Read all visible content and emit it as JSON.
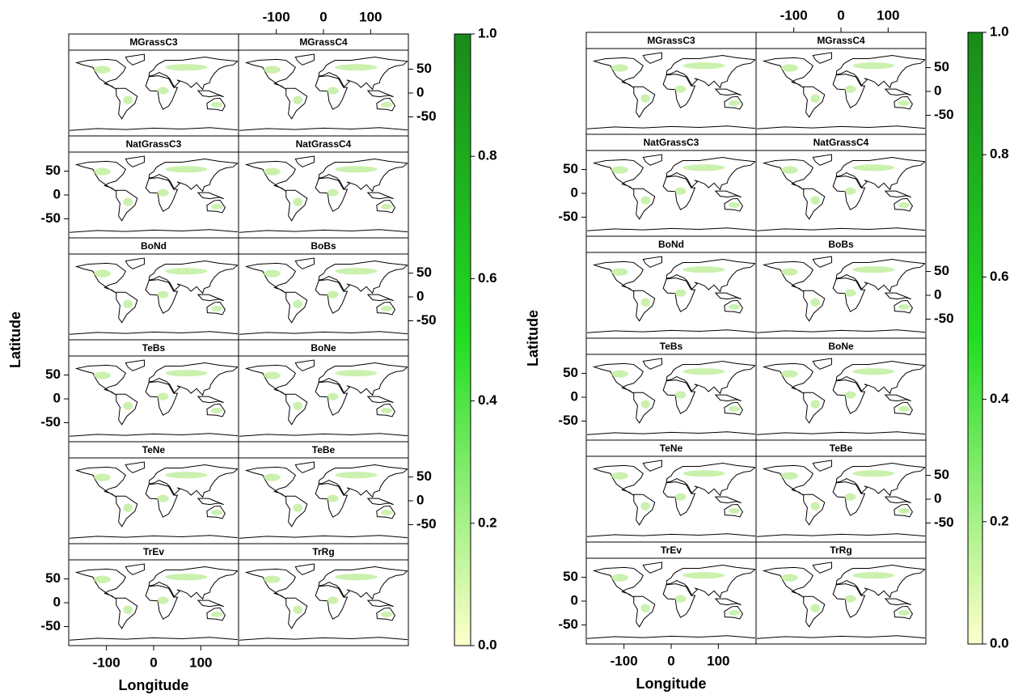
{
  "figures": [
    {
      "panels": [
        "MGrassC3",
        "MGrassC4",
        "NatGrassC3",
        "NatGrassC4",
        "BoNd",
        "BoBs",
        "TeBs",
        "BoNe",
        "TeNe",
        "TeBe",
        "TrEv",
        "TrRg"
      ],
      "xlabel": "Longitude",
      "ylabel": "Latitude",
      "xlim": [
        -180,
        180
      ],
      "ylim": [
        -90,
        90
      ],
      "xticks": [
        -100,
        0,
        100
      ],
      "yticks": [
        50,
        0,
        -50
      ],
      "colorbar": {
        "lim": [
          0,
          1
        ],
        "colors": [
          "#ffffcc",
          "#22dd22",
          "#1a8a1a"
        ],
        "ticks": [
          {
            "value": 0,
            "label": "0.0"
          },
          {
            "value": 0.2,
            "label": "0.2"
          },
          {
            "value": 0.4,
            "label": "0.4"
          },
          {
            "value": 0.6,
            "label": "0.6"
          },
          {
            "value": 0.8,
            "label": "0.8"
          },
          {
            "value": 1,
            "label": "1.0"
          }
        ]
      }
    },
    {
      "panels": [
        "MGrassC3",
        "MGrassC4",
        "NatGrassC3",
        "NatGrassC4",
        "BoNd",
        "BoBs",
        "TeBs",
        "BoNe",
        "TeNe",
        "TeBe",
        "TrEv",
        "TrRg"
      ],
      "xlabel": "Longitude",
      "ylabel": "Latitude",
      "xlim": [
        -180,
        180
      ],
      "ylim": [
        -90,
        90
      ],
      "xticks": [
        -100,
        0,
        100
      ],
      "yticks": [
        50,
        0,
        -50
      ],
      "colorbar": {
        "lim": [
          0,
          1
        ],
        "colors": [
          "#ffffcc",
          "#22dd22",
          "#1a8a1a"
        ],
        "ticks": [
          {
            "value": 0,
            "label": "0.0"
          },
          {
            "value": 0.2,
            "label": "0.2"
          },
          {
            "value": 0.4,
            "label": "0.4"
          },
          {
            "value": 0.6,
            "label": "0.6"
          },
          {
            "value": 0.8,
            "label": "0.8"
          },
          {
            "value": 1,
            "label": "1.0"
          }
        ]
      }
    }
  ]
}
